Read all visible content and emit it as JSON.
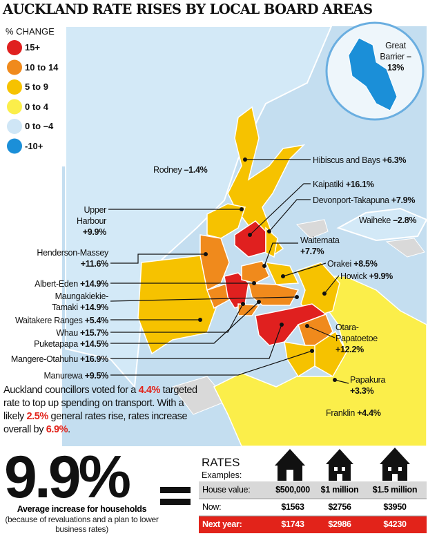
{
  "title": "AUCKLAND RATE RISES BY LOCAL BOARD AREAS",
  "legend": {
    "title": "% CHANGE",
    "items": [
      {
        "label": "15+",
        "color": "#e0201f"
      },
      {
        "label": "10 to 14",
        "color": "#f08a1c"
      },
      {
        "label": "5 to 9",
        "color": "#f6c200"
      },
      {
        "label": "0 to 4",
        "color": "#fbee4a"
      },
      {
        "label": "0 to –4",
        "color": "#cfe6f6"
      },
      {
        "label": "-10+",
        "color": "#1b8fd8"
      }
    ]
  },
  "inset": {
    "name": "Great Barrier",
    "change": "–13%"
  },
  "boards": [
    {
      "name": "Rodney",
      "change": "–1.4%"
    },
    {
      "name": "Hibiscus and Bays",
      "change": "+6.3%"
    },
    {
      "name": "Kaipatiki",
      "change": "+16.1%"
    },
    {
      "name": "Devonport-Takapuna",
      "change": "+7.9%"
    },
    {
      "name": "Upper Harbour",
      "change": "+9.9%"
    },
    {
      "name": "Waiheke",
      "change": "–2.8%"
    },
    {
      "name": "Waitemata",
      "change": "+7.7%"
    },
    {
      "name": "Henderson-Massey",
      "change": "+11.6%"
    },
    {
      "name": "Orakei",
      "change": "+8.5%"
    },
    {
      "name": "Howick",
      "change": "+9.9%"
    },
    {
      "name": "Albert-Eden",
      "change": "+14.9%"
    },
    {
      "name": "Maungakiekie-Tamaki",
      "change": "+14.9%"
    },
    {
      "name": "Waitakere Ranges",
      "change": "+5.4%"
    },
    {
      "name": "Whau",
      "change": "+15.7%"
    },
    {
      "name": "Otara-Papatoetoe",
      "change": "+12.2%"
    },
    {
      "name": "Puketapapa",
      "change": "+14.5%"
    },
    {
      "name": "Mangere-Otahuhu",
      "change": "+16.9%"
    },
    {
      "name": "Manurewa",
      "change": "+9.5%"
    },
    {
      "name": "Papakura",
      "change": "+3.3%"
    },
    {
      "name": "Franklin",
      "change": "+4.4%"
    }
  ],
  "note": [
    {
      "text": "Auckland councillors voted for a ",
      "highlight": false
    },
    {
      "text": "4.4%",
      "highlight": true
    },
    {
      "text": " targeted rate to top up spending on transport. With a likely ",
      "highlight": false
    },
    {
      "text": "2.5%",
      "highlight": true
    },
    {
      "text": " general rates rise, rates increase overall by ",
      "highlight": false
    },
    {
      "text": "6.9%",
      "highlight": true
    },
    {
      "text": ".",
      "highlight": false
    }
  ],
  "headline": {
    "value": "9.9%",
    "caption": "Average increase for households",
    "subcaption": "(because of revaluations and a plan to lower business rates)"
  },
  "rates": {
    "title": "RATES",
    "subtitle": "Examples:",
    "rows": [
      [
        "House value:",
        "$500,000",
        "$1 million",
        "$1.5 million"
      ],
      [
        "Now:",
        "$1563",
        "$2756",
        "$3950"
      ],
      [
        "Next year:",
        "$1743",
        "$2986",
        "$4230"
      ]
    ]
  }
}
